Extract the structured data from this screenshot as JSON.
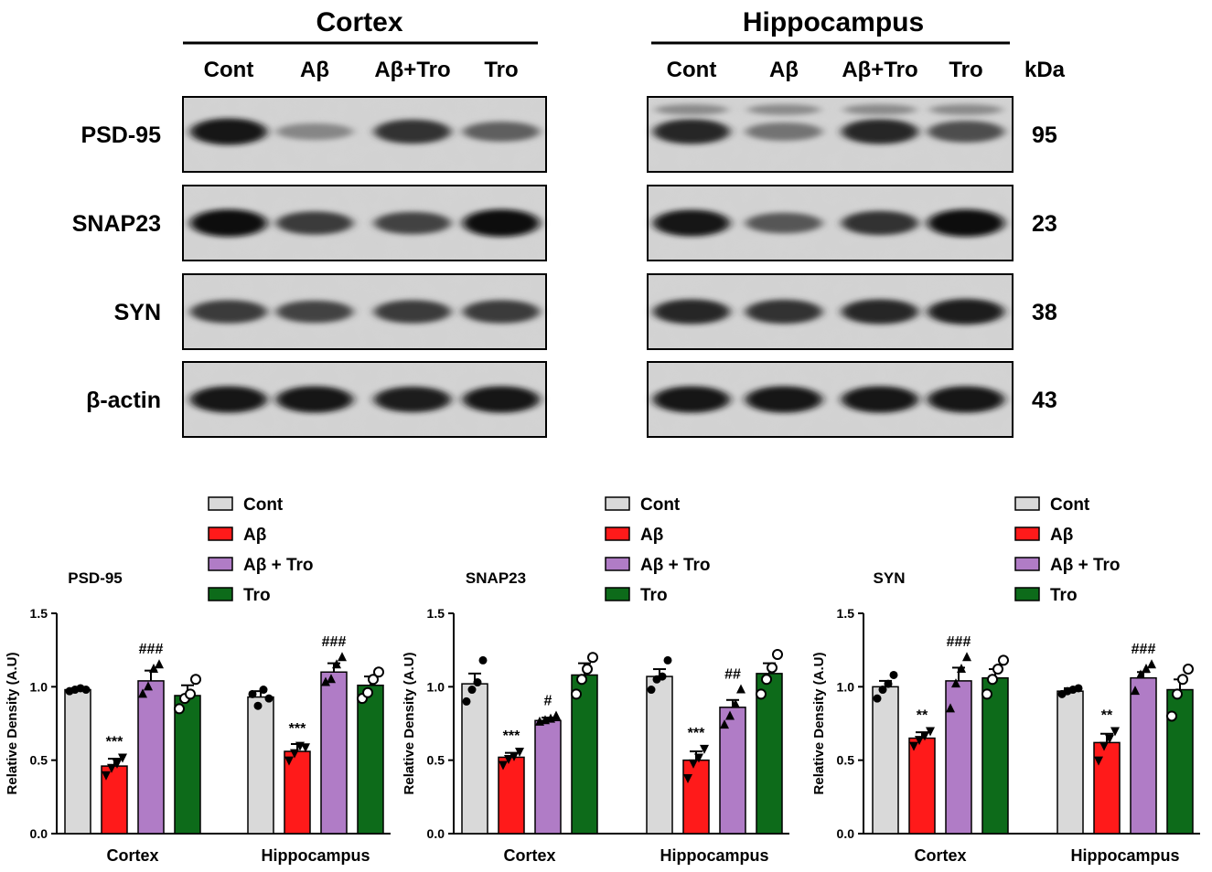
{
  "blot": {
    "panels": [
      {
        "title": "Cortex",
        "lanes": [
          "Cont",
          "Aβ",
          "Aβ+Tro",
          "Tro"
        ]
      },
      {
        "title": "Hippocampus",
        "lanes": [
          "Cont",
          "Aβ",
          "Aβ+Tro",
          "Tro"
        ]
      }
    ],
    "kda_label": "kDa",
    "rows": [
      {
        "protein": "PSD-95",
        "kda": "95",
        "cortex_intensity": [
          0.95,
          0.35,
          0.8,
          0.55
        ],
        "hippocampus_intensity": [
          0.85,
          0.45,
          0.85,
          0.65
        ]
      },
      {
        "protein": "SNAP23",
        "kda": "23",
        "cortex_intensity": [
          1.0,
          0.75,
          0.7,
          1.0
        ],
        "hippocampus_intensity": [
          0.95,
          0.6,
          0.8,
          1.0
        ]
      },
      {
        "protein": "SYN",
        "kda": "38",
        "cortex_intensity": [
          0.75,
          0.7,
          0.75,
          0.75
        ],
        "hippocampus_intensity": [
          0.85,
          0.8,
          0.85,
          0.9
        ]
      },
      {
        "protein": "β-actin",
        "kda": "43",
        "cortex_intensity": [
          0.95,
          0.95,
          0.9,
          0.95
        ],
        "hippocampus_intensity": [
          0.95,
          0.95,
          0.95,
          0.95
        ]
      }
    ]
  },
  "chart_data": [
    {
      "type": "bar",
      "title": "PSD-95",
      "ylabel": "Relative Density (A.U)",
      "ylim": [
        0,
        1.5
      ],
      "yticks": [
        "0.0",
        "0.5",
        "1.0",
        "1.5"
      ],
      "categories": [
        "Cortex",
        "Hippocampus"
      ],
      "series": [
        {
          "name": "Cont",
          "color": "#d9d9d9",
          "marker": "circle-filled",
          "values": [
            0.98,
            0.93
          ],
          "sem": [
            0.01,
            0.04
          ],
          "points": [
            [
              0.97,
              0.98,
              0.99,
              0.98
            ],
            [
              0.95,
              0.87,
              0.98,
              0.92
            ]
          ]
        },
        {
          "name": "Aβ",
          "color": "#ff1a1a",
          "marker": "triangle-down",
          "values": [
            0.46,
            0.56
          ],
          "sem": [
            0.05,
            0.05
          ],
          "points": [
            [
              0.4,
              0.45,
              0.48,
              0.52
            ],
            [
              0.5,
              0.55,
              0.6,
              0.59
            ]
          ]
        },
        {
          "name": "Aβ + Tro",
          "color": "#b07cc6",
          "marker": "triangle-up",
          "values": [
            1.04,
            1.1
          ],
          "sem": [
            0.07,
            0.06
          ],
          "points": [
            [
              0.95,
              1.0,
              1.12,
              1.15
            ],
            [
              1.03,
              1.05,
              1.15,
              1.2
            ]
          ]
        },
        {
          "name": "Tro",
          "color": "#0d6b1a",
          "marker": "circle-open",
          "values": [
            0.94,
            1.01
          ],
          "sem": [
            0.07,
            0.06
          ],
          "points": [
            [
              0.85,
              0.92,
              0.95,
              1.05
            ],
            [
              0.92,
              0.96,
              1.05,
              1.1
            ]
          ]
        }
      ],
      "annotations": [
        {
          "series": 1,
          "category": 0,
          "text": "***"
        },
        {
          "series": 2,
          "category": 0,
          "text": "###"
        },
        {
          "series": 1,
          "category": 1,
          "text": "***"
        },
        {
          "series": 2,
          "category": 1,
          "text": "###"
        }
      ]
    },
    {
      "type": "bar",
      "title": "SNAP23",
      "ylabel": "Relative Density (A.U)",
      "ylim": [
        0,
        1.5
      ],
      "yticks": [
        "0.0",
        "0.5",
        "1.0",
        "1.5"
      ],
      "categories": [
        "Cortex",
        "Hippocampus"
      ],
      "series": [
        {
          "name": "Cont",
          "color": "#d9d9d9",
          "marker": "circle-filled",
          "values": [
            1.02,
            1.07
          ],
          "sem": [
            0.07,
            0.05
          ],
          "points": [
            [
              0.9,
              0.98,
              1.03,
              1.18
            ],
            [
              0.98,
              1.05,
              1.07,
              1.18
            ]
          ]
        },
        {
          "name": "Aβ",
          "color": "#ff1a1a",
          "marker": "triangle-down",
          "values": [
            0.52,
            0.5
          ],
          "sem": [
            0.03,
            0.06
          ],
          "points": [
            [
              0.47,
              0.51,
              0.53,
              0.56
            ],
            [
              0.38,
              0.48,
              0.52,
              0.58
            ]
          ]
        },
        {
          "name": "Aβ + Tro",
          "color": "#b07cc6",
          "marker": "triangle-up",
          "values": [
            0.77,
            0.86
          ],
          "sem": [
            0.02,
            0.05
          ],
          "points": [
            [
              0.76,
              0.77,
              0.78,
              0.8
            ],
            [
              0.74,
              0.8,
              0.88,
              0.98
            ]
          ]
        },
        {
          "name": "Tro",
          "color": "#0d6b1a",
          "marker": "circle-open",
          "values": [
            1.08,
            1.09
          ],
          "sem": [
            0.08,
            0.07
          ],
          "points": [
            [
              0.95,
              1.05,
              1.12,
              1.2
            ],
            [
              0.95,
              1.05,
              1.13,
              1.22
            ]
          ]
        }
      ],
      "annotations": [
        {
          "series": 1,
          "category": 0,
          "text": "***"
        },
        {
          "series": 2,
          "category": 0,
          "text": "#"
        },
        {
          "series": 1,
          "category": 1,
          "text": "***"
        },
        {
          "series": 2,
          "category": 1,
          "text": "##"
        }
      ]
    },
    {
      "type": "bar",
      "title": "SYN",
      "ylabel": "Relative Density (A.U)",
      "ylim": [
        0,
        1.5
      ],
      "yticks": [
        "0.0",
        "0.5",
        "1.0",
        "1.5"
      ],
      "categories": [
        "Cortex",
        "Hippocampus"
      ],
      "series": [
        {
          "name": "Cont",
          "color": "#d9d9d9",
          "marker": "circle-filled",
          "values": [
            1.0,
            0.97
          ],
          "sem": [
            0.04,
            0.02
          ],
          "points": [
            [
              0.92,
              0.98,
              1.02,
              1.08
            ],
            [
              0.95,
              0.97,
              0.98,
              0.99
            ]
          ]
        },
        {
          "name": "Aβ",
          "color": "#ff1a1a",
          "marker": "triangle-down",
          "values": [
            0.65,
            0.62
          ],
          "sem": [
            0.04,
            0.06
          ],
          "points": [
            [
              0.6,
              0.64,
              0.67,
              0.7
            ],
            [
              0.5,
              0.6,
              0.65,
              0.7
            ]
          ]
        },
        {
          "name": "Aβ + Tro",
          "color": "#b07cc6",
          "marker": "triangle-up",
          "values": [
            1.04,
            1.06
          ],
          "sem": [
            0.09,
            0.04
          ],
          "points": [
            [
              0.85,
              1.02,
              1.12,
              1.2
            ],
            [
              0.97,
              1.08,
              1.12,
              1.15
            ]
          ]
        },
        {
          "name": "Tro",
          "color": "#0d6b1a",
          "marker": "circle-open",
          "values": [
            1.06,
            0.98
          ],
          "sem": [
            0.06,
            0.07
          ],
          "points": [
            [
              0.95,
              1.05,
              1.12,
              1.18
            ],
            [
              0.8,
              0.95,
              1.05,
              1.12
            ]
          ]
        }
      ],
      "annotations": [
        {
          "series": 1,
          "category": 0,
          "text": "**"
        },
        {
          "series": 2,
          "category": 0,
          "text": "###"
        },
        {
          "series": 1,
          "category": 1,
          "text": "**"
        },
        {
          "series": 2,
          "category": 1,
          "text": "###"
        }
      ]
    }
  ]
}
